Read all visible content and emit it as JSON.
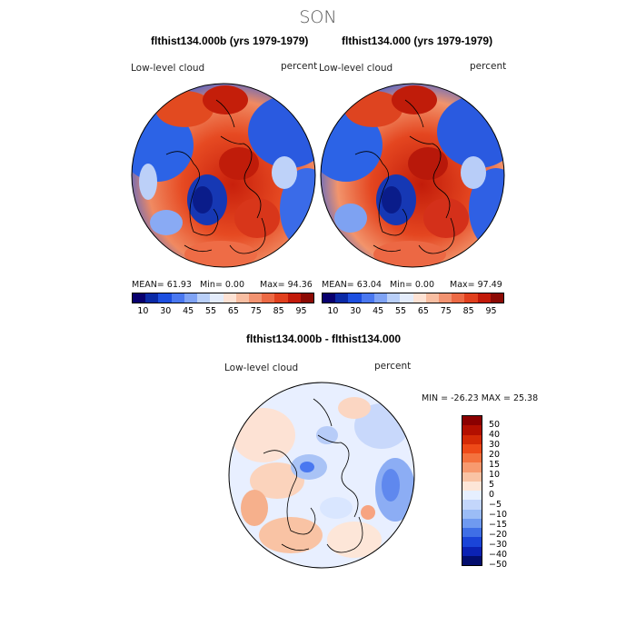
{
  "page": {
    "title": "SON"
  },
  "panels": [
    {
      "title": "flthist134.000b (yrs 1979-1979)",
      "variable": "Low-level cloud",
      "units": "percent",
      "stats": {
        "mean": "MEAN=  61.93",
        "min": "Min=   0.00",
        "max": "Max=  94.36"
      }
    },
    {
      "title": "flthist134.000 (yrs 1979-1979)",
      "variable": "Low-level cloud",
      "units": "percent",
      "stats": {
        "mean": "MEAN=  63.04",
        "min": "Min=   0.00",
        "max": "Max=  97.49"
      }
    }
  ],
  "colorbar_top": {
    "colors": [
      "#08006e",
      "#0a2aa6",
      "#1d4fe0",
      "#4a78f0",
      "#7fa3f5",
      "#b9cff8",
      "#e4ecfb",
      "#fde2d4",
      "#f8bea2",
      "#f29371",
      "#ec6a45",
      "#e1401e",
      "#c21a0a",
      "#8c0a04"
    ],
    "tick_labels": [
      "10",
      "30",
      "45",
      "55",
      "65",
      "75",
      "85",
      "95"
    ]
  },
  "diff_panel": {
    "title": "flthist134.000b - flthist134.000",
    "variable": "Low-level cloud",
    "units": "percent",
    "minmax": "MIN = -26.23  MAX =  25.38"
  },
  "colorbar_diff": {
    "colors": [
      "#8b0000",
      "#b30f00",
      "#d42a06",
      "#ee4a18",
      "#f4723e",
      "#f79a6f",
      "#f9c3a4",
      "#fde6d8",
      "#e6efff",
      "#c3d6fb",
      "#9bbcf6",
      "#6f9af0",
      "#3f6fe6",
      "#1a44d8",
      "#0b22b4",
      "#030e6e"
    ],
    "tick_labels": [
      "50",
      "40",
      "30",
      "20",
      "15",
      "10",
      "5",
      "0",
      "−5",
      "−10",
      "−15",
      "−20",
      "−30",
      "−40",
      "−50"
    ]
  }
}
